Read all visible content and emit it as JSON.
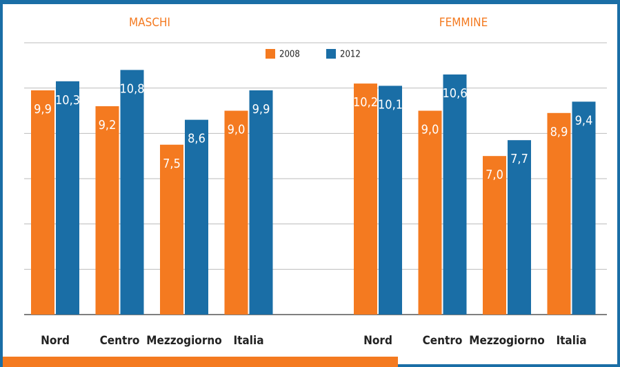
{
  "chart_data": {
    "type": "bar",
    "ylim": [
      0,
      12
    ],
    "yticks": [
      0,
      2,
      4,
      6,
      8,
      10,
      12
    ],
    "grid": true,
    "legend": "top",
    "series": [
      {
        "name": "2008",
        "color": "#f47a20"
      },
      {
        "name": "2012",
        "color": "#1a6ea6"
      }
    ],
    "panels": [
      {
        "title": "MASCHI",
        "categories": [
          "Nord",
          "Centro",
          "Mezzogiorno",
          "Italia"
        ],
        "values": [
          [
            9.9,
            9.2,
            7.5,
            9.0
          ],
          [
            10.3,
            10.8,
            8.6,
            9.9
          ]
        ],
        "value_labels": [
          [
            "9,9",
            "9,2",
            "7,5",
            "9,0"
          ],
          [
            "10,3",
            "10,8",
            "8,6",
            "9,9"
          ]
        ]
      },
      {
        "title": "FEMMINE",
        "categories": [
          "Nord",
          "Centro",
          "Mezzogiorno",
          "Italia"
        ],
        "values": [
          [
            10.2,
            9.0,
            7.0,
            8.9
          ],
          [
            10.1,
            10.6,
            7.7,
            9.4
          ]
        ],
        "value_labels": [
          [
            "10,2",
            "9,0",
            "7,0",
            "8,9"
          ],
          [
            "10,1",
            "10,6",
            "7,7",
            "9,4"
          ]
        ]
      }
    ]
  }
}
